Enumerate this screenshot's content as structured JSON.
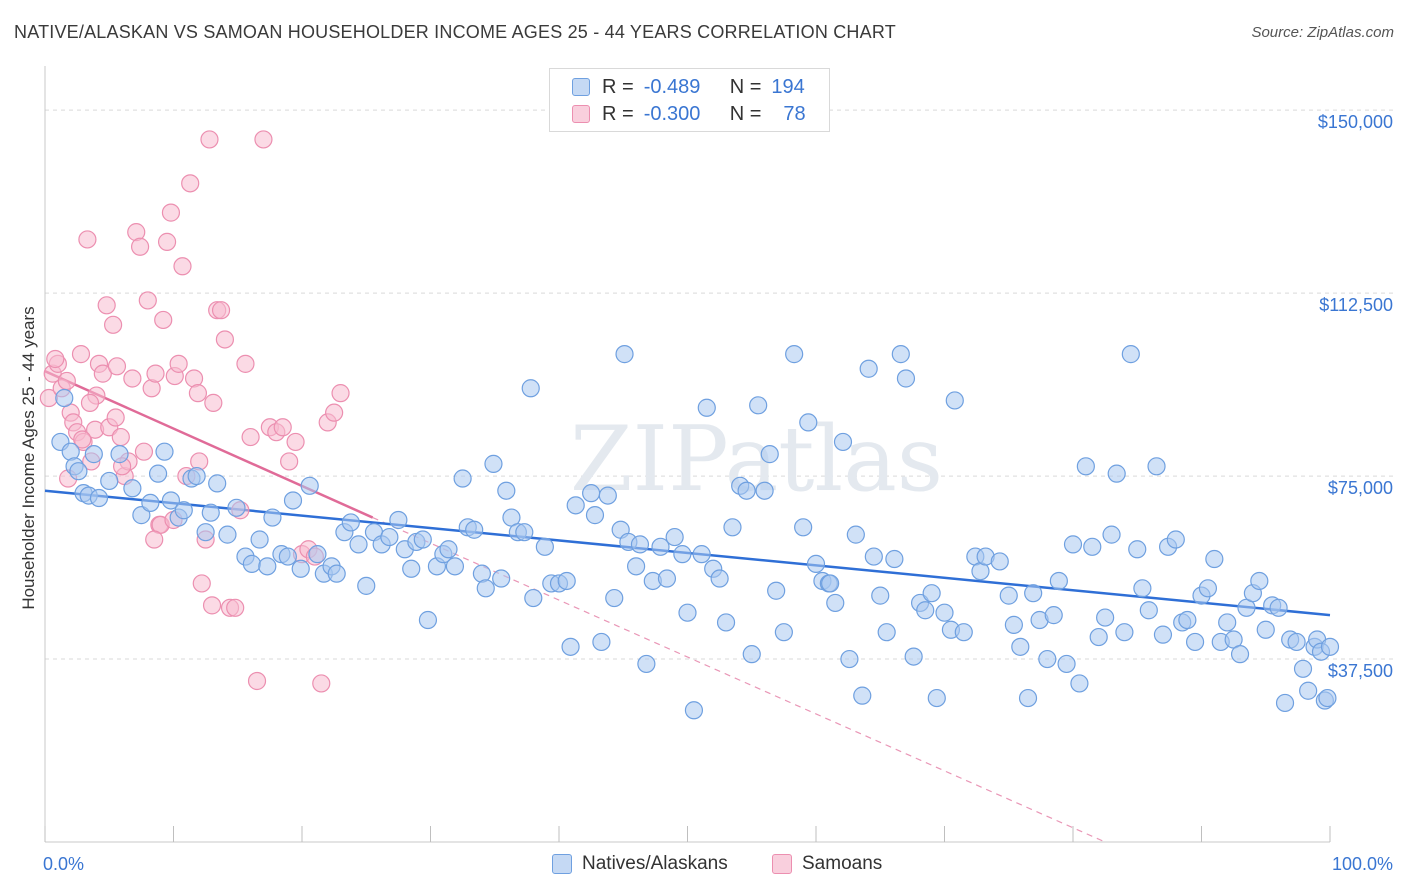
{
  "title": "NATIVE/ALASKAN VS SAMOAN HOUSEHOLDER INCOME AGES 25 - 44 YEARS CORRELATION CHART",
  "source": "Source: ZipAtlas.com",
  "watermark": "ZIPatlas",
  "legend_stats": [
    {
      "r_label": "R =",
      "r_value": "-0.489",
      "n_label": "N =",
      "n_value": "194"
    },
    {
      "r_label": "R =",
      "r_value": "-0.300",
      "n_label": "N =",
      "n_value": "78"
    }
  ],
  "colors": {
    "blue_fill": "#a9c8f0",
    "blue_stroke": "#6fa0e0",
    "blue_line": "#2f6fd6",
    "pink_fill": "#f7bcd0",
    "pink_stroke": "#ec8fb0",
    "pink_line": "#e06b98",
    "grid": "#d9d9d9",
    "value_text": "#3a76d2"
  },
  "chart_data": {
    "type": "scatter",
    "title": "NATIVE/ALASKAN VS SAMOAN HOUSEHOLDER INCOME AGES 25 - 44 YEARS CORRELATION CHART",
    "xlabel": "",
    "ylabel": "Householder Income Ages 25 - 44 years",
    "xlim": [
      0,
      100
    ],
    "ylim": [
      0,
      157000
    ],
    "x_tick_labels": [
      "0.0%",
      "100.0%"
    ],
    "y_ticks": [
      37500,
      75000,
      112500,
      150000
    ],
    "y_tick_labels": [
      "$37,500",
      "$75,000",
      "$112,500",
      "$150,000"
    ],
    "grid": true,
    "legend_position": "top-center",
    "series": [
      {
        "name": "Natives/Alaskans",
        "r": -0.489,
        "n": 194,
        "trend": {
          "x": [
            0,
            100
          ],
          "y": [
            72000,
            46500
          ]
        },
        "points": [
          [
            1.2,
            82000
          ],
          [
            1.5,
            91000
          ],
          [
            2.0,
            80000
          ],
          [
            2.3,
            77000
          ],
          [
            2.6,
            76000
          ],
          [
            3.0,
            71500
          ],
          [
            3.4,
            71000
          ],
          [
            3.8,
            79500
          ],
          [
            4.2,
            70500
          ],
          [
            5.0,
            74000
          ],
          [
            5.8,
            79500
          ],
          [
            6.8,
            72500
          ],
          [
            7.5,
            67000
          ],
          [
            8.2,
            69500
          ],
          [
            8.8,
            75500
          ],
          [
            9.3,
            80000
          ],
          [
            9.8,
            70000
          ],
          [
            10.4,
            66500
          ],
          [
            10.8,
            68000
          ],
          [
            11.4,
            74500
          ],
          [
            11.8,
            75000
          ],
          [
            12.5,
            63500
          ],
          [
            12.9,
            67500
          ],
          [
            13.4,
            73500
          ],
          [
            14.2,
            63000
          ],
          [
            14.9,
            68500
          ],
          [
            15.6,
            58500
          ],
          [
            16.1,
            57000
          ],
          [
            16.7,
            62000
          ],
          [
            17.3,
            56500
          ],
          [
            17.7,
            66500
          ],
          [
            18.4,
            59000
          ],
          [
            18.9,
            58500
          ],
          [
            19.3,
            70000
          ],
          [
            19.9,
            56000
          ],
          [
            20.6,
            73000
          ],
          [
            21.2,
            59000
          ],
          [
            21.7,
            55000
          ],
          [
            22.3,
            56500
          ],
          [
            22.7,
            55000
          ],
          [
            23.3,
            63500
          ],
          [
            23.8,
            65500
          ],
          [
            24.4,
            61000
          ],
          [
            25.0,
            52500
          ],
          [
            25.6,
            63500
          ],
          [
            26.2,
            61000
          ],
          [
            26.8,
            62500
          ],
          [
            27.5,
            66000
          ],
          [
            28.0,
            60000
          ],
          [
            28.5,
            56000
          ],
          [
            28.9,
            61500
          ],
          [
            29.4,
            62000
          ],
          [
            29.8,
            45500
          ],
          [
            30.5,
            56500
          ],
          [
            31.0,
            59000
          ],
          [
            31.4,
            60000
          ],
          [
            31.9,
            56500
          ],
          [
            32.5,
            74500
          ],
          [
            32.9,
            64500
          ],
          [
            33.4,
            64000
          ],
          [
            34.0,
            55000
          ],
          [
            34.3,
            52000
          ],
          [
            34.9,
            77500
          ],
          [
            35.5,
            54000
          ],
          [
            35.9,
            72000
          ],
          [
            36.3,
            66500
          ],
          [
            36.8,
            63500
          ],
          [
            37.3,
            63500
          ],
          [
            37.8,
            93000
          ],
          [
            38.0,
            50000
          ],
          [
            38.9,
            60500
          ],
          [
            39.4,
            53000
          ],
          [
            40.0,
            53000
          ],
          [
            40.6,
            53500
          ],
          [
            40.9,
            40000
          ],
          [
            41.3,
            69000
          ],
          [
            42.5,
            71500
          ],
          [
            42.8,
            67000
          ],
          [
            43.3,
            41000
          ],
          [
            43.8,
            71000
          ],
          [
            44.3,
            50000
          ],
          [
            44.8,
            64000
          ],
          [
            45.1,
            100000
          ],
          [
            45.4,
            61500
          ],
          [
            46.0,
            56500
          ],
          [
            46.3,
            61000
          ],
          [
            46.8,
            36500
          ],
          [
            47.3,
            53500
          ],
          [
            47.9,
            60500
          ],
          [
            48.4,
            54000
          ],
          [
            49.0,
            62500
          ],
          [
            49.6,
            59000
          ],
          [
            50.0,
            47000
          ],
          [
            50.5,
            27000
          ],
          [
            51.1,
            59000
          ],
          [
            51.5,
            89000
          ],
          [
            52.0,
            56000
          ],
          [
            52.5,
            54000
          ],
          [
            53.0,
            45000
          ],
          [
            53.5,
            64500
          ],
          [
            54.1,
            73000
          ],
          [
            54.6,
            72000
          ],
          [
            55.0,
            38500
          ],
          [
            55.5,
            89500
          ],
          [
            56.0,
            72000
          ],
          [
            56.4,
            79500
          ],
          [
            56.9,
            51500
          ],
          [
            57.5,
            43000
          ],
          [
            58.3,
            100000
          ],
          [
            59.0,
            64500
          ],
          [
            59.4,
            86000
          ],
          [
            60.0,
            57000
          ],
          [
            60.5,
            53500
          ],
          [
            61.0,
            53000
          ],
          [
            61.5,
            49000
          ],
          [
            62.1,
            82000
          ],
          [
            62.6,
            37500
          ],
          [
            63.1,
            63000
          ],
          [
            63.6,
            30000
          ],
          [
            64.1,
            97000
          ],
          [
            64.5,
            58500
          ],
          [
            65.0,
            50500
          ],
          [
            65.5,
            43000
          ],
          [
            66.1,
            58000
          ],
          [
            66.6,
            100000
          ],
          [
            67.0,
            95000
          ],
          [
            67.6,
            38000
          ],
          [
            68.1,
            49000
          ],
          [
            68.5,
            47500
          ],
          [
            69.0,
            51000
          ],
          [
            69.4,
            29500
          ],
          [
            70.0,
            47000
          ],
          [
            70.5,
            43500
          ],
          [
            70.8,
            90500
          ],
          [
            71.5,
            43000
          ],
          [
            72.4,
            58500
          ],
          [
            72.8,
            55500
          ],
          [
            73.2,
            58500
          ],
          [
            74.3,
            57500
          ],
          [
            75.0,
            50500
          ],
          [
            75.4,
            44500
          ],
          [
            75.9,
            40000
          ],
          [
            76.5,
            29500
          ],
          [
            76.9,
            51000
          ],
          [
            77.4,
            45500
          ],
          [
            78.0,
            37500
          ],
          [
            78.5,
            46500
          ],
          [
            78.9,
            53500
          ],
          [
            79.5,
            36500
          ],
          [
            80.0,
            61000
          ],
          [
            80.5,
            32500
          ],
          [
            81.0,
            77000
          ],
          [
            81.5,
            60500
          ],
          [
            82.0,
            42000
          ],
          [
            82.5,
            46000
          ],
          [
            83.0,
            63000
          ],
          [
            83.4,
            75500
          ],
          [
            84.0,
            43000
          ],
          [
            84.5,
            100000
          ],
          [
            85.0,
            60000
          ],
          [
            85.4,
            52000
          ],
          [
            85.9,
            47500
          ],
          [
            86.5,
            77000
          ],
          [
            87.0,
            42500
          ],
          [
            87.4,
            60500
          ],
          [
            88.0,
            62000
          ],
          [
            88.5,
            45000
          ],
          [
            88.9,
            45500
          ],
          [
            89.5,
            41000
          ],
          [
            90.0,
            50500
          ],
          [
            90.5,
            52000
          ],
          [
            91.0,
            58000
          ],
          [
            91.5,
            41000
          ],
          [
            92.0,
            45000
          ],
          [
            92.5,
            41500
          ],
          [
            93.0,
            38500
          ],
          [
            93.5,
            48000
          ],
          [
            94.0,
            51000
          ],
          [
            94.5,
            53500
          ],
          [
            95.0,
            43500
          ],
          [
            95.5,
            48500
          ],
          [
            96.0,
            48000
          ],
          [
            96.5,
            28500
          ],
          [
            96.9,
            41500
          ],
          [
            97.4,
            41000
          ],
          [
            97.9,
            35500
          ],
          [
            98.3,
            31000
          ],
          [
            98.8,
            40000
          ],
          [
            99.0,
            41500
          ],
          [
            99.3,
            39000
          ],
          [
            99.6,
            29000
          ],
          [
            99.8,
            29500
          ],
          [
            100.0,
            40000
          ],
          [
            61.1,
            53000
          ]
        ]
      },
      {
        "name": "Samoans",
        "r": -0.3,
        "n": 78,
        "trend": {
          "x": [
            0,
            25.5
          ],
          "y": [
            96500,
            66500
          ]
        },
        "trend_extension": {
          "x": [
            25.5,
            82.5
          ],
          "y": [
            66500,
            0
          ]
        },
        "points": [
          [
            0.3,
            91000
          ],
          [
            0.6,
            96000
          ],
          [
            1.0,
            98000
          ],
          [
            1.3,
            93000
          ],
          [
            1.7,
            94500
          ],
          [
            2.0,
            88000
          ],
          [
            2.2,
            86000
          ],
          [
            2.5,
            84000
          ],
          [
            2.8,
            100000
          ],
          [
            3.0,
            82000
          ],
          [
            3.3,
            123500
          ],
          [
            3.6,
            78000
          ],
          [
            3.9,
            84500
          ],
          [
            4.2,
            98000
          ],
          [
            4.5,
            96000
          ],
          [
            4.8,
            110000
          ],
          [
            5.0,
            85000
          ],
          [
            5.3,
            106000
          ],
          [
            5.6,
            97500
          ],
          [
            5.9,
            83000
          ],
          [
            6.2,
            75000
          ],
          [
            6.5,
            78000
          ],
          [
            6.8,
            95000
          ],
          [
            7.1,
            125000
          ],
          [
            7.4,
            122000
          ],
          [
            7.7,
            80000
          ],
          [
            8.0,
            111000
          ],
          [
            8.3,
            93000
          ],
          [
            8.6,
            96000
          ],
          [
            8.9,
            65000
          ],
          [
            9.2,
            107000
          ],
          [
            9.5,
            123000
          ],
          [
            9.8,
            129000
          ],
          [
            10.1,
            95500
          ],
          [
            10.4,
            98000
          ],
          [
            10.7,
            118000
          ],
          [
            11.0,
            75000
          ],
          [
            11.3,
            135000
          ],
          [
            11.6,
            95000
          ],
          [
            11.9,
            92000
          ],
          [
            12.2,
            53000
          ],
          [
            12.5,
            62000
          ],
          [
            12.8,
            144000
          ],
          [
            13.1,
            90000
          ],
          [
            13.4,
            109000
          ],
          [
            13.7,
            109000
          ],
          [
            14.0,
            103000
          ],
          [
            14.4,
            48000
          ],
          [
            14.8,
            48000
          ],
          [
            15.2,
            68000
          ],
          [
            15.6,
            98000
          ],
          [
            16.0,
            83000
          ],
          [
            16.5,
            33000
          ],
          [
            17.0,
            144000
          ],
          [
            17.5,
            85000
          ],
          [
            18.0,
            84000
          ],
          [
            18.5,
            85000
          ],
          [
            19.0,
            78000
          ],
          [
            19.5,
            82000
          ],
          [
            20.0,
            59000
          ],
          [
            20.5,
            60000
          ],
          [
            21.0,
            58500
          ],
          [
            21.5,
            32500
          ],
          [
            22.0,
            86000
          ],
          [
            22.5,
            88000
          ],
          [
            23.0,
            92000
          ],
          [
            4.0,
            91500
          ],
          [
            2.9,
            82500
          ],
          [
            1.8,
            74500
          ],
          [
            6.0,
            77000
          ],
          [
            3.5,
            90000
          ],
          [
            0.8,
            99000
          ],
          [
            5.5,
            87000
          ],
          [
            9.0,
            65000
          ],
          [
            8.5,
            62000
          ],
          [
            13.0,
            48500
          ],
          [
            12.0,
            78000
          ],
          [
            10.0,
            66000
          ]
        ]
      }
    ]
  }
}
